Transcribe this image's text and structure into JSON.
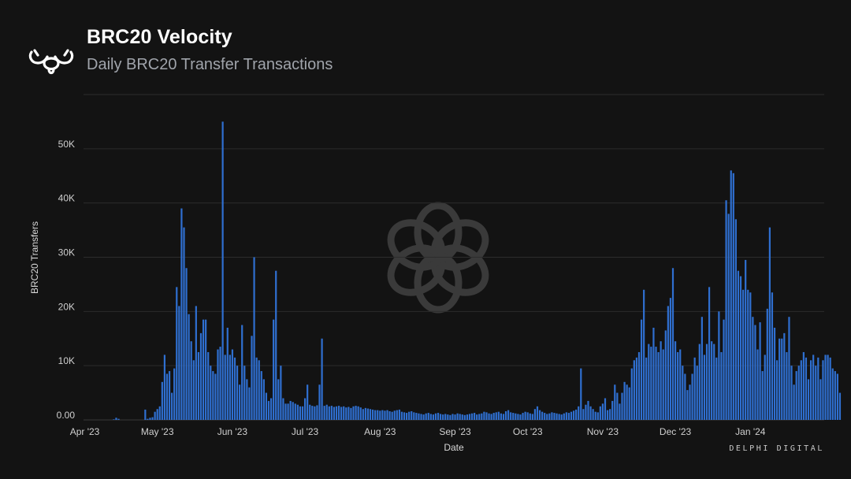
{
  "header": {
    "title": "BRC20 Velocity",
    "subtitle": "Daily BRC20 Transfer Transactions"
  },
  "brand": {
    "text": "DELPHI DIGITAL"
  },
  "colors": {
    "bar": "#2f6fd0",
    "grid": "#2c2c2c",
    "background": "#131313"
  },
  "icons": {
    "logo": "delphi-logo-icon",
    "watermark": "delphi-watermark-icon"
  },
  "chart_data": {
    "type": "bar",
    "xlabel": "Date",
    "ylabel": "BRC20 Transfers",
    "ylim": [
      0,
      60000
    ],
    "grid": true,
    "legend": "none",
    "x_start": "2023-04-01",
    "x_end": "2024-01-31",
    "yticks": [
      {
        "value": 0,
        "label": "0.00"
      },
      {
        "value": 10000,
        "label": "10K"
      },
      {
        "value": 20000,
        "label": "20K"
      },
      {
        "value": 30000,
        "label": "30K"
      },
      {
        "value": 40000,
        "label": "40K"
      },
      {
        "value": 50000,
        "label": "50K"
      }
    ],
    "xticks": [
      {
        "date": "2023-04-01",
        "label": "Apr '23"
      },
      {
        "date": "2023-05-01",
        "label": "May '23"
      },
      {
        "date": "2023-06-01",
        "label": "Jun '23"
      },
      {
        "date": "2023-07-01",
        "label": "Jul '23"
      },
      {
        "date": "2023-08-01",
        "label": "Aug '23"
      },
      {
        "date": "2023-09-01",
        "label": "Sep '23"
      },
      {
        "date": "2023-10-01",
        "label": "Oct '23"
      },
      {
        "date": "2023-11-01",
        "label": "Nov '23"
      },
      {
        "date": "2023-12-01",
        "label": "Dec '23"
      },
      {
        "date": "2024-01-01",
        "label": "Jan '24"
      }
    ],
    "values": [
      0,
      0,
      0,
      0,
      0,
      0,
      0,
      0,
      0,
      0,
      0,
      0,
      100,
      400,
      200,
      0,
      0,
      0,
      0,
      0,
      0,
      0,
      0,
      0,
      0,
      1900,
      200,
      400,
      500,
      1500,
      2000,
      2500,
      7000,
      12000,
      8500,
      9000,
      5000,
      9500,
      24500,
      21000,
      39000,
      35500,
      28000,
      19500,
      14500,
      11000,
      21000,
      12500,
      16000,
      18500,
      18500,
      12500,
      10000,
      9000,
      8500,
      13000,
      13500,
      55000,
      12000,
      17000,
      12000,
      13000,
      11500,
      10000,
      6500,
      17500,
      10000,
      7500,
      6000,
      15500,
      30000,
      11500,
      11000,
      9000,
      7500,
      5000,
      3500,
      4000,
      18500,
      27500,
      7500,
      10000,
      4000,
      3000,
      3000,
      3500,
      3300,
      3000,
      2800,
      2500,
      2500,
      4000,
      6500,
      2800,
      2600,
      2500,
      2700,
      6500,
      15000,
      2600,
      2800,
      2500,
      2600,
      2400,
      2500,
      2600,
      2400,
      2500,
      2300,
      2400,
      2200,
      2500,
      2600,
      2500,
      2300,
      2000,
      2200,
      2100,
      2000,
      1900,
      1800,
      1800,
      1700,
      1800,
      1700,
      1800,
      1600,
      1500,
      1700,
      1800,
      1900,
      1500,
      1400,
      1300,
      1500,
      1600,
      1400,
      1300,
      1200,
      1100,
      1000,
      1200,
      1300,
      1100,
      1000,
      1200,
      1300,
      1100,
      1000,
      1100,
      1000,
      900,
      1100,
      1000,
      1200,
      1100,
      1000,
      900,
      1000,
      1100,
      1200,
      1300,
      1000,
      1100,
      1200,
      1500,
      1400,
      1200,
      1100,
      1300,
      1400,
      1500,
      1200,
      1100,
      1600,
      1800,
      1400,
      1300,
      1200,
      1100,
      1000,
      1300,
      1500,
      1400,
      1200,
      1100,
      2000,
      2500,
      1800,
      1500,
      1300,
      1100,
      1200,
      1400,
      1300,
      1200,
      1100,
      1000,
      1200,
      1400,
      1300,
      1500,
      1700,
      1900,
      2500,
      9500,
      2000,
      2800,
      3500,
      2500,
      2000,
      1500,
      1400,
      2500,
      3000,
      4000,
      1800,
      2000,
      3500,
      6500,
      5000,
      3000,
      5000,
      7000,
      6500,
      6000,
      9500,
      11000,
      11500,
      12500,
      18500,
      24000,
      11500,
      14000,
      13500,
      17000,
      13500,
      12500,
      14500,
      13000,
      16500,
      21000,
      22500,
      28000,
      14500,
      12500,
      13000,
      10000,
      8500,
      5500,
      6500,
      8500,
      11500,
      10000,
      14000,
      19000,
      12000,
      14000,
      24500,
      14500,
      14000,
      11500,
      20000,
      12500,
      18500,
      40500,
      38000,
      46000,
      45500,
      37000,
      27500,
      26500,
      24000,
      29500,
      24000,
      23500,
      19000,
      17500,
      13000,
      18000,
      9000,
      12000,
      20500,
      35500,
      23500,
      17000,
      11000,
      15000,
      15000,
      16000,
      12500,
      19000,
      10000,
      6500,
      9000,
      10000,
      11000,
      12500,
      11500,
      7500,
      11000,
      12000,
      10000,
      11500,
      7500,
      11000,
      12000,
      12000,
      11500,
      9500,
      9000,
      8500,
      5000
    ]
  }
}
